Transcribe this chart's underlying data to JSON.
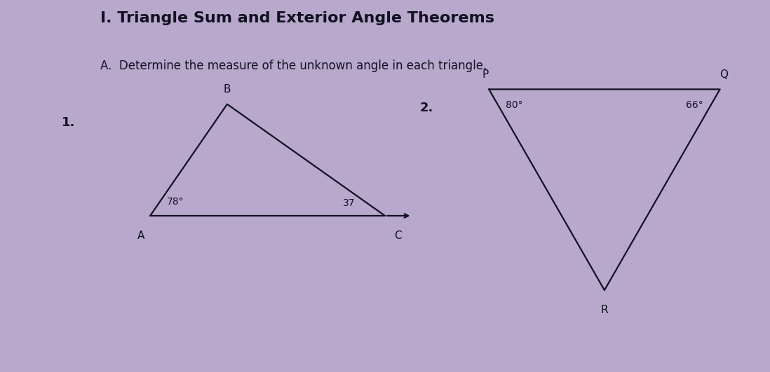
{
  "bg_color": "#b8a8cc",
  "title": "I. Triangle Sum and Exterior Angle Theorems",
  "subtitle": "A.  Determine the measure of the unknown angle in each triangle.",
  "title_fontsize": 16,
  "subtitle_fontsize": 12,
  "label1": "1.",
  "label2": "2.",
  "tri1": {
    "A": [
      0.195,
      0.42
    ],
    "B": [
      0.295,
      0.72
    ],
    "C": [
      0.5,
      0.42
    ],
    "angle_A_text": "78°",
    "angle_C_text": "37",
    "C_arrow": true
  },
  "tri2": {
    "P": [
      0.635,
      0.76
    ],
    "Q": [
      0.935,
      0.76
    ],
    "R": [
      0.785,
      0.22
    ],
    "angle_P_text": "80°",
    "angle_Q_text": "66°"
  },
  "line_color": "#111122",
  "text_color": "#111122",
  "line_width": 1.6
}
